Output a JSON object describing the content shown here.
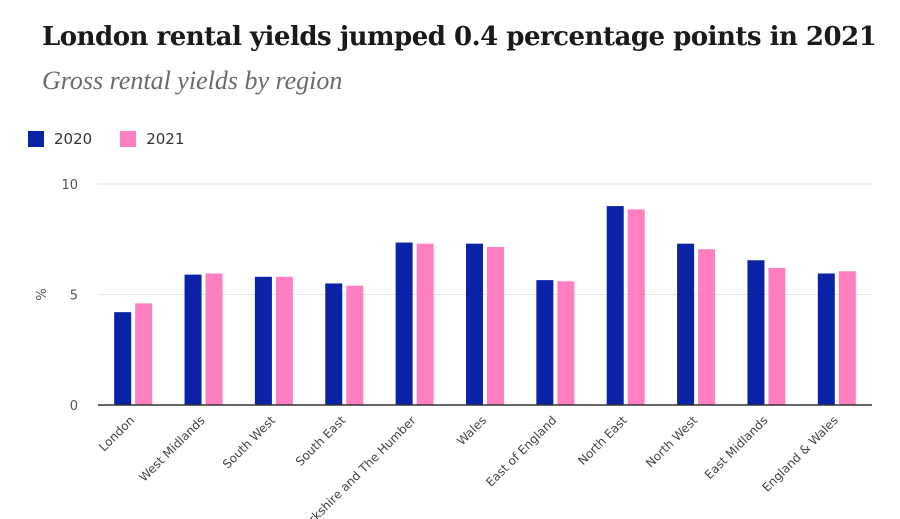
{
  "title": "London rental yields jumped 0.4 percentage points in 2021",
  "subtitle": "Gross rental yields by region",
  "chart_data": {
    "type": "bar",
    "title": "London rental yields jumped 0.4 percentage points in 2021",
    "subtitle": "Gross rental yields by region",
    "xlabel": "",
    "ylabel": "%",
    "ylim": [
      0,
      10
    ],
    "yticks": [
      0,
      5,
      10
    ],
    "grid": true,
    "legend_position": "top-left",
    "categories": [
      "London",
      "West Midlands",
      "South West",
      "South East",
      "Yorkshire and The Humber",
      "Wales",
      "East of England",
      "North East",
      "North West",
      "East Midlands",
      "England & Wales"
    ],
    "series": [
      {
        "name": "2020",
        "color": "#0a22a5",
        "values": [
          4.2,
          5.9,
          5.8,
          5.5,
          7.35,
          7.3,
          5.65,
          9.0,
          7.3,
          6.55,
          5.95
        ]
      },
      {
        "name": "2021",
        "color": "#ff7fc0",
        "values": [
          4.6,
          5.95,
          5.8,
          5.4,
          7.3,
          7.15,
          5.6,
          8.85,
          7.05,
          6.2,
          6.05
        ]
      }
    ]
  }
}
